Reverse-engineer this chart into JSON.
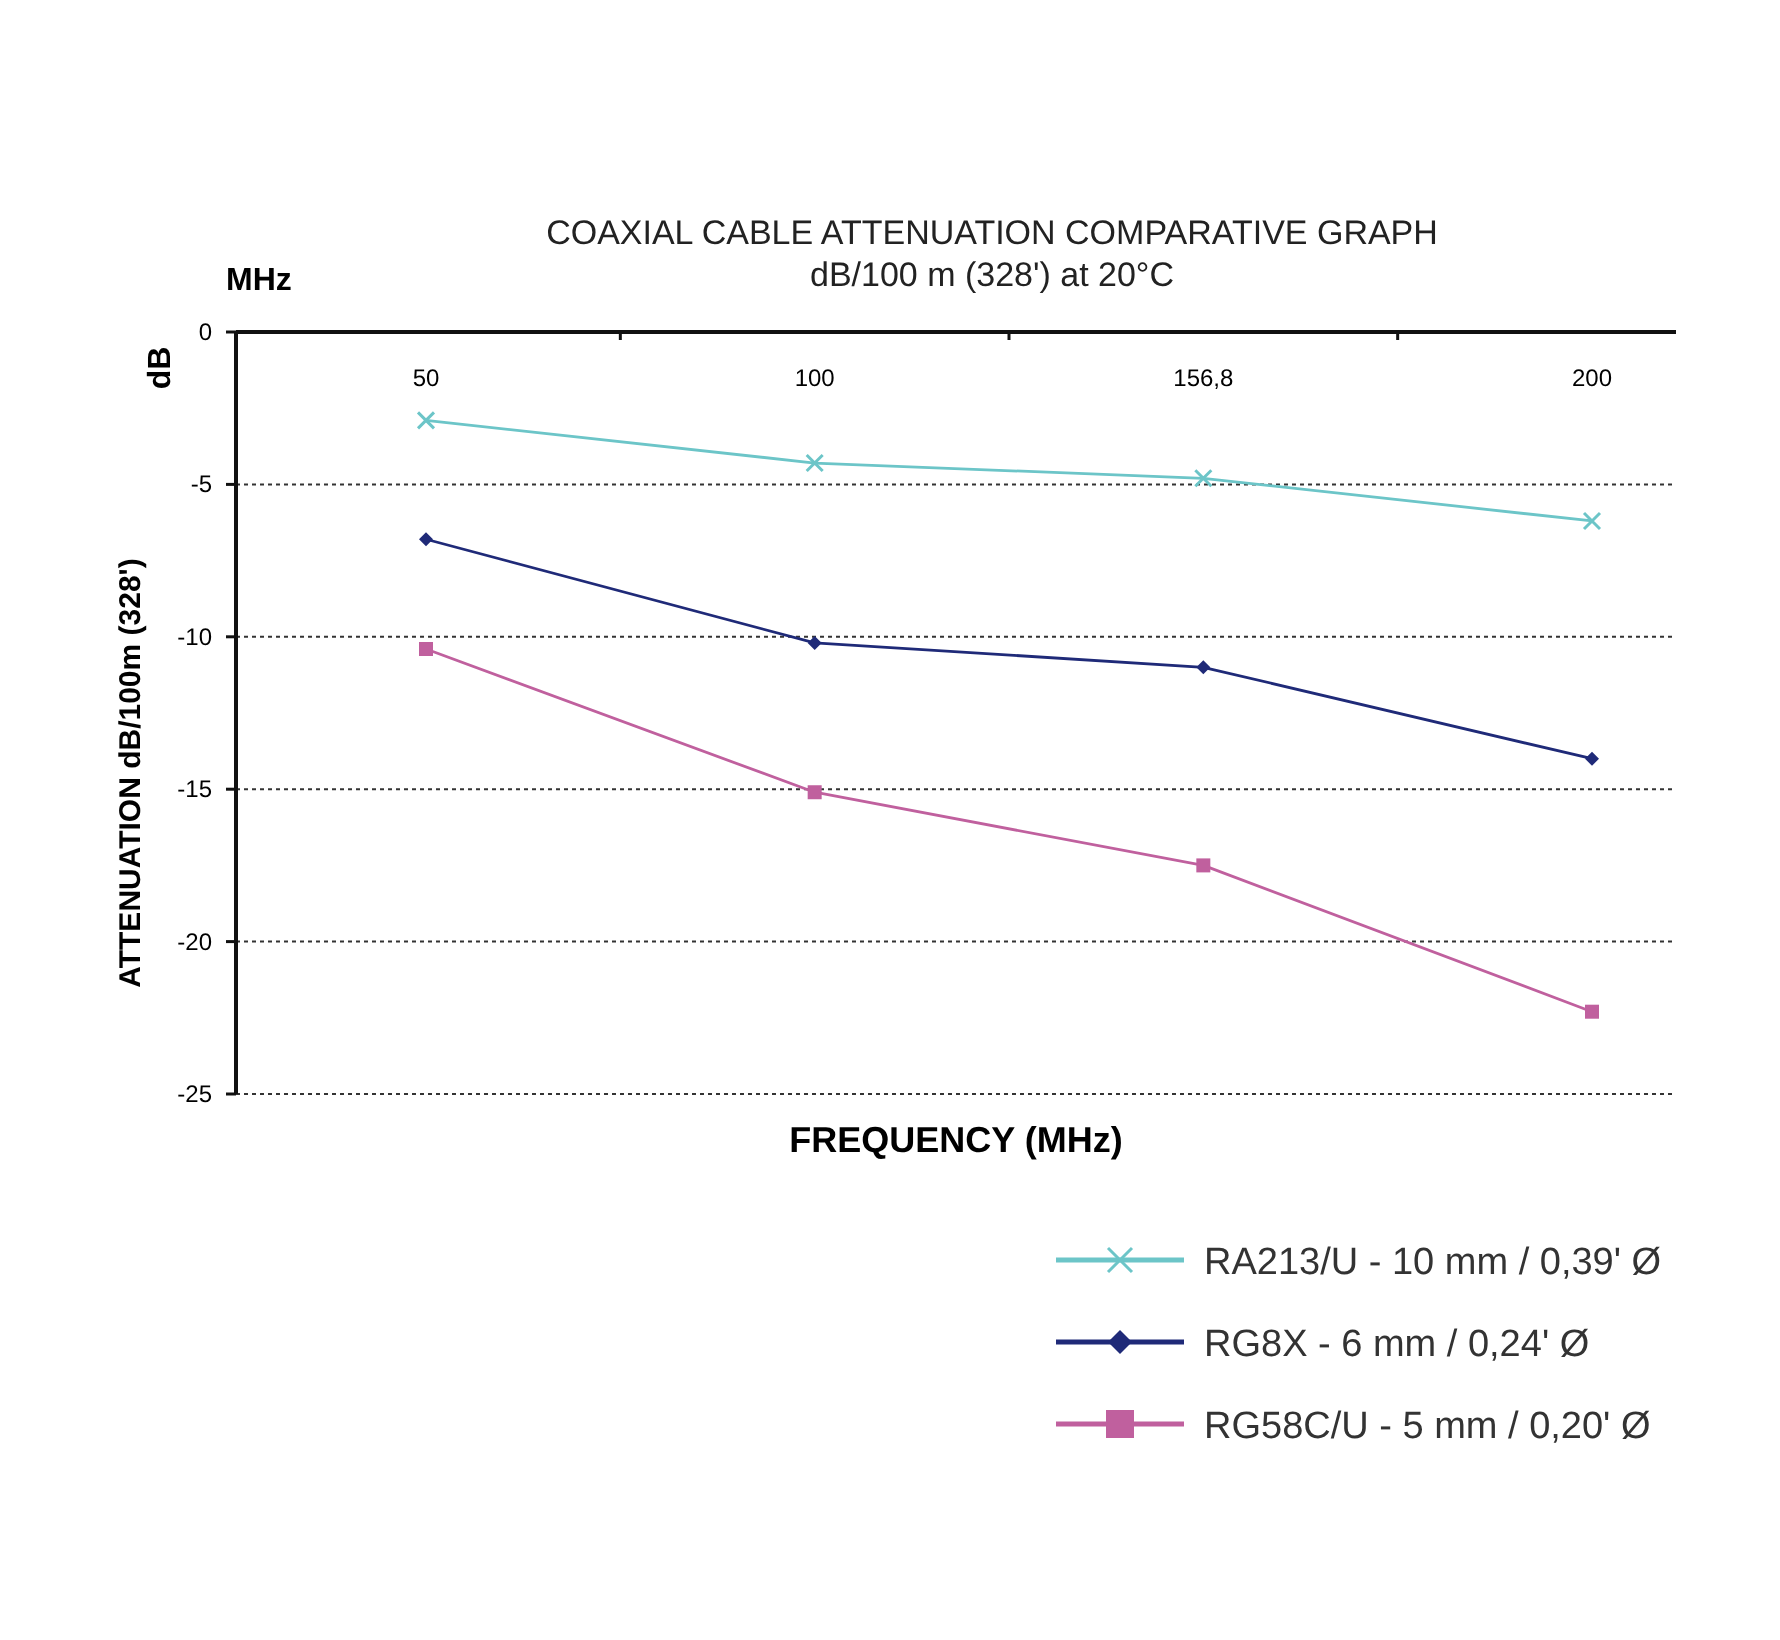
{
  "chart_data": {
    "type": "line",
    "title": "COAXIAL CABLE ATTENUATION COMPARATIVE GRAPH",
    "subtitle": "dB/100 m (328') at 20°C",
    "xlabel": "FREQUENCY (MHz)",
    "ylabel": "ATTENUATION dB/100m (328')",
    "annotations": [
      "MHz",
      "dB"
    ],
    "categories": [
      "50",
      "100",
      "156,8",
      "200"
    ],
    "series": [
      {
        "name": "RA213/U - 10 mm / 0,39' Ø",
        "color": "#6cc5c8",
        "marker": "cross",
        "values": [
          -2.9,
          -4.3,
          -4.8,
          -6.2
        ]
      },
      {
        "name": "RG8X - 6 mm / 0,24' Ø",
        "color": "#1f2a78",
        "marker": "diamond",
        "values": [
          -6.8,
          -10.2,
          -11.0,
          -14.0
        ]
      },
      {
        "name": "RG58C/U - 5 mm / 0,20' Ø",
        "color": "#c0609e",
        "marker": "square",
        "values": [
          -10.4,
          -15.1,
          -17.5,
          -22.3
        ]
      }
    ],
    "ylim": [
      -25,
      0
    ],
    "yticks": [
      0,
      -5,
      -10,
      -15,
      -20,
      -25
    ],
    "grid": "y",
    "legend": "bottom right",
    "line_style": "solid"
  }
}
